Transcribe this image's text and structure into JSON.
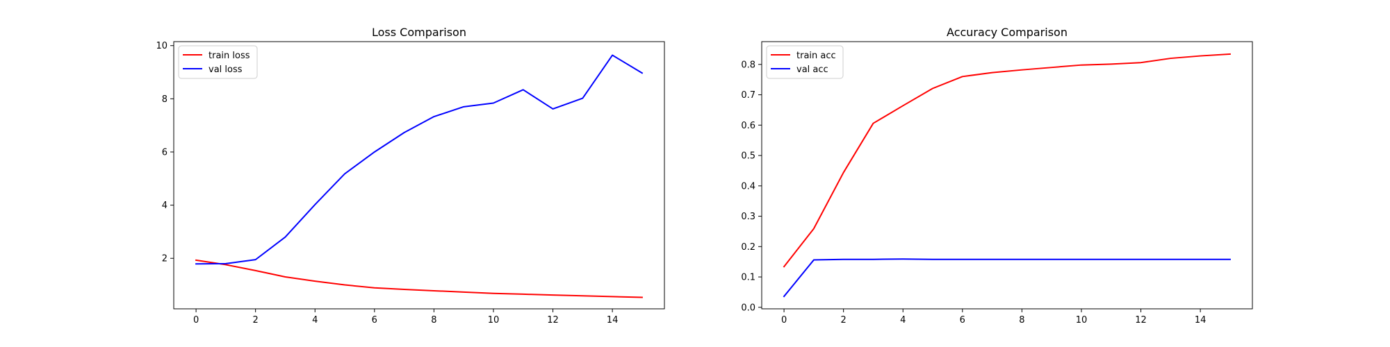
{
  "chart_data": [
    {
      "type": "line",
      "title": "Loss Comparison",
      "xlabel": "",
      "ylabel": "",
      "x": [
        0,
        1,
        2,
        3,
        4,
        5,
        6,
        7,
        8,
        9,
        10,
        11,
        12,
        13,
        14,
        15
      ],
      "xlim": [
        -0.75,
        15.75
      ],
      "ylim": [
        0.1,
        10.15
      ],
      "xticks": [
        0,
        2,
        4,
        6,
        8,
        10,
        12,
        14
      ],
      "yticks": [
        2,
        4,
        6,
        8,
        10
      ],
      "grid": false,
      "legend": "top-left",
      "series": [
        {
          "name": "train loss",
          "color": "#ff0000",
          "values": [
            1.93,
            1.76,
            1.54,
            1.3,
            1.14,
            1.0,
            0.89,
            0.83,
            0.78,
            0.73,
            0.68,
            0.65,
            0.62,
            0.59,
            0.56,
            0.53
          ]
        },
        {
          "name": "val loss",
          "color": "#0000ff",
          "values": [
            1.79,
            1.8,
            1.95,
            2.8,
            4.02,
            5.18,
            6.0,
            6.73,
            7.33,
            7.7,
            7.84,
            8.34,
            7.62,
            8.02,
            9.64,
            8.97
          ]
        }
      ]
    },
    {
      "type": "line",
      "title": "Accuracy Comparison",
      "xlabel": "",
      "ylabel": "",
      "x": [
        0,
        1,
        2,
        3,
        4,
        5,
        6,
        7,
        8,
        9,
        10,
        11,
        12,
        13,
        14,
        15
      ],
      "xlim": [
        -0.75,
        15.75
      ],
      "ylim": [
        -0.005,
        0.875
      ],
      "xticks": [
        0,
        2,
        4,
        6,
        8,
        10,
        12,
        14
      ],
      "yticks": [
        0.0,
        0.1,
        0.2,
        0.3,
        0.4,
        0.5,
        0.6,
        0.7,
        0.8
      ],
      "ytick_labels": [
        "0.0",
        "0.1",
        "0.2",
        "0.3",
        "0.4",
        "0.5",
        "0.6",
        "0.7",
        "0.8"
      ],
      "grid": false,
      "legend": "top-left",
      "series": [
        {
          "name": "train acc",
          "color": "#ff0000",
          "values": [
            0.134,
            0.259,
            0.444,
            0.606,
            0.664,
            0.721,
            0.76,
            0.773,
            0.782,
            0.79,
            0.798,
            0.801,
            0.806,
            0.82,
            0.828,
            0.834
          ]
        },
        {
          "name": "val acc",
          "color": "#0000ff",
          "values": [
            0.036,
            0.156,
            0.158,
            0.158,
            0.159,
            0.158,
            0.158,
            0.158,
            0.158,
            0.158,
            0.158,
            0.158,
            0.158,
            0.158,
            0.158,
            0.158
          ]
        }
      ]
    }
  ]
}
